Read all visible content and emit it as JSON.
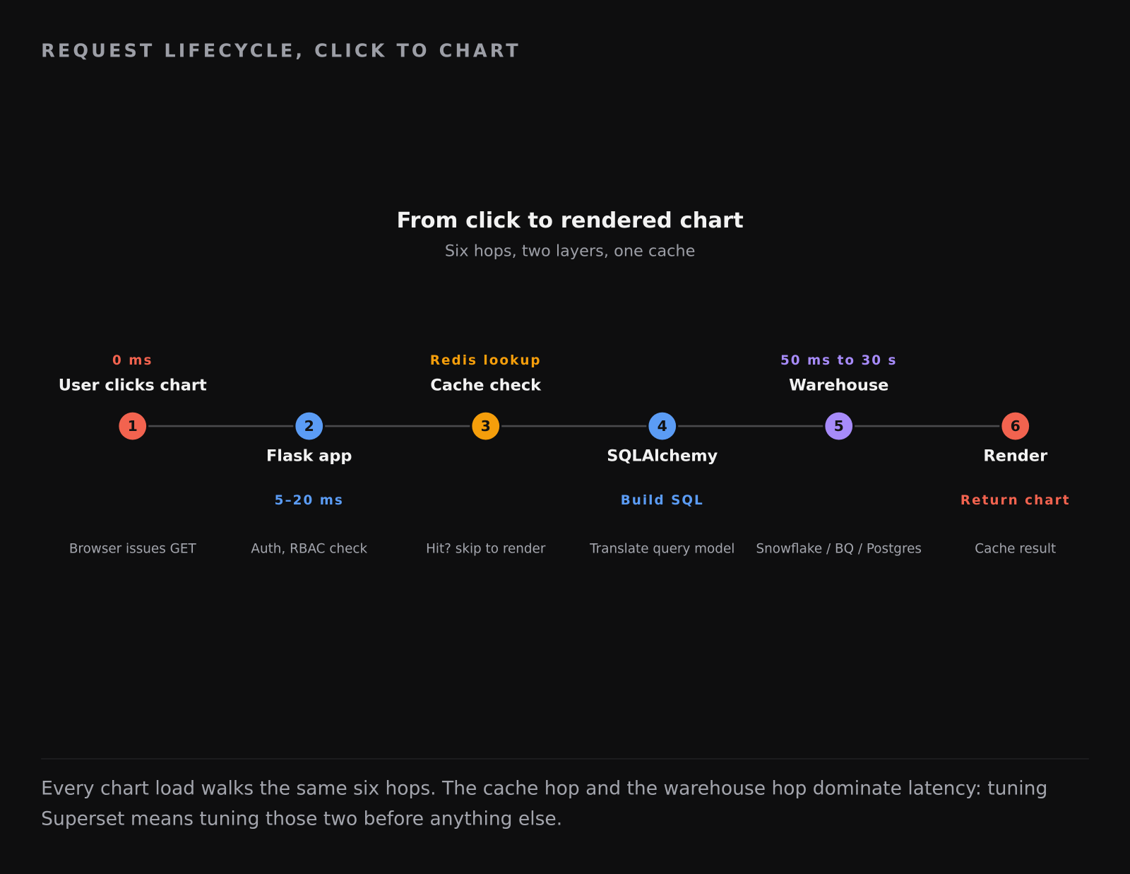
{
  "header": {
    "label": "REQUEST LIFECYCLE, CLICK TO CHART"
  },
  "diagram": {
    "title": "From click to rendered chart",
    "subtitle": "Six hops, two layers, one cache",
    "steps": [
      {
        "number": "1",
        "name": "User clicks chart",
        "tag": "0 ms",
        "detail": "Browser issues GET",
        "color": "#f2634f"
      },
      {
        "number": "2",
        "name": "Flask app",
        "tag": "5–20 ms",
        "detail": "Auth, RBAC check",
        "color": "#5b9cf5"
      },
      {
        "number": "3",
        "name": "Cache check",
        "tag": "Redis lookup",
        "detail": "Hit? skip to render",
        "color": "#f59e0b"
      },
      {
        "number": "4",
        "name": "SQLAlchemy",
        "tag": "Build SQL",
        "detail": "Translate query model",
        "color": "#5b9cf5"
      },
      {
        "number": "5",
        "name": "Warehouse",
        "tag": "50 ms to 30 s",
        "detail": "Snowflake / BQ / Postgres",
        "color": "#a78bfa"
      },
      {
        "number": "6",
        "name": "Render",
        "tag": "Return chart",
        "detail": "Cache result",
        "color": "#f2634f"
      }
    ]
  },
  "footer": {
    "text": "Every chart load walks the same six hops. The cache hop and the warehouse hop dominate latency: tuning Superset means tuning those two before anything else."
  }
}
